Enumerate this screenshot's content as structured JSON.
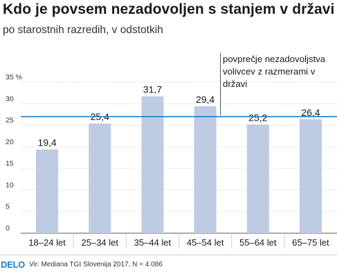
{
  "header": {
    "title": "Kdo je povsem nezadovoljen s stanjem v državi",
    "subtitle": "po starostnih razredih, v odstotkih"
  },
  "annotation": {
    "text": "povprečje nezadovoljstva volivcev z razmerami v državi"
  },
  "footer": {
    "logo": "DELO",
    "source": "Vir: Mediana TGI Slovenija 2017, N = 4.086"
  },
  "colors": {
    "bar": "#bdcbe3",
    "average_line": "#1f7bc1",
    "grid": "#cfcfcf"
  },
  "chart_data": {
    "type": "bar",
    "title": "Kdo je povsem nezadovoljen s stanjem v državi",
    "subtitle": "po starostnih razredih, v odstotkih",
    "categories": [
      "18–24 let",
      "25–34 let",
      "35–44 let",
      "45–54 let",
      "55–64 let",
      "65–75 let"
    ],
    "values": [
      19.4,
      25.4,
      31.7,
      29.4,
      25.2,
      26.4
    ],
    "value_labels": [
      "19,4",
      "25,4",
      "31,7",
      "29,4",
      "25,2",
      "26,4"
    ],
    "ylim": [
      0,
      35
    ],
    "yticks": [
      0,
      5,
      10,
      15,
      20,
      25,
      30,
      35
    ],
    "ytick_labels": [
      "0",
      "5",
      "10",
      "15",
      "20",
      "25",
      "30",
      "35 %"
    ],
    "average_line": 27,
    "grid": true,
    "xlabel": "",
    "ylabel": ""
  }
}
